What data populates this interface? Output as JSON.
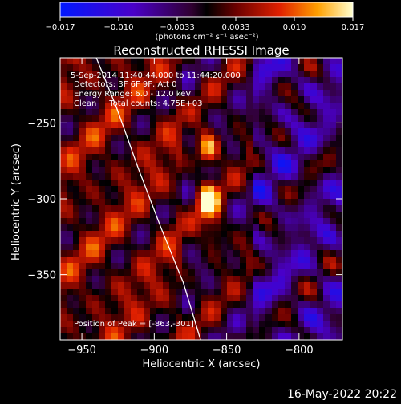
{
  "colorbar": {
    "ticks": [
      "−0.017",
      "−0.010",
      "−0.0033",
      "0.0033",
      "0.010",
      "0.017"
    ],
    "units": "(photons cm⁻² s⁻¹ asec⁻²)"
  },
  "title": "Reconstructed RHESSI Image",
  "info_lines": [
    "5-Sep-2014 11:40:44.000 to 11:44:20.000",
    "Detectors: 3F 6F 9F, Att 0",
    "Energy Range: 6.0 - 12.0 keV",
    "Clean     Total counts: 4.75E+03"
  ],
  "peak_text": "Position of Peak = [-863,-301]",
  "footer_date": "16-May-2022 20:22",
  "chart_data": {
    "type": "heatmap",
    "title": "Reconstructed RHESSI Image",
    "xlabel": "Heliocentric X (arcsec)",
    "ylabel": "Heliocentric Y (arcsec)",
    "xlim": [
      -965,
      -770
    ],
    "ylim": [
      -393,
      -207
    ],
    "x_ticks": [
      -950,
      -900,
      -850,
      -800
    ],
    "y_ticks": [
      -250,
      -300,
      -350
    ],
    "colorbar_range": [
      -0.017,
      0.017
    ],
    "peak": [
      -863,
      -301
    ],
    "sources": [
      {
        "x": -863,
        "y": -301,
        "amp": 0.017
      },
      {
        "x": -863,
        "y": -267,
        "amp": 0.015
      },
      {
        "x": -858,
        "y": -322,
        "amp": 0.008
      }
    ],
    "limb_curve": [
      [
        -940,
        -207
      ],
      [
        -926,
        -240
      ],
      [
        -911,
        -280
      ],
      [
        -895,
        -320
      ],
      [
        -880,
        -355
      ],
      [
        -868,
        -393
      ]
    ]
  }
}
